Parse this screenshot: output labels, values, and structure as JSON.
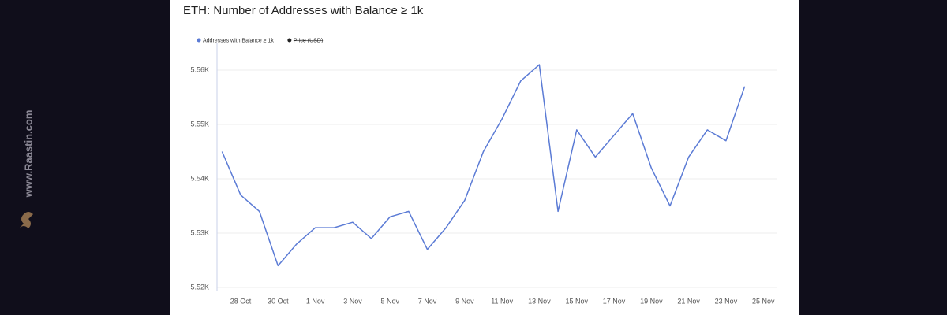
{
  "watermark": "www.Raastin.com",
  "chart_data": {
    "type": "line",
    "title": "ETH: Number of Addresses with Balance ≥ 1k",
    "categories": [
      null,
      "28 Oct",
      null,
      "30 Oct",
      null,
      "1 Nov",
      null,
      "3 Nov",
      null,
      "5 Nov",
      null,
      "7 Nov",
      null,
      "9 Nov",
      null,
      "11 Nov",
      null,
      "13 Nov",
      null,
      "15 Nov",
      null,
      "17 Nov",
      null,
      "19 Nov",
      null,
      "21 Nov",
      null,
      "23 Nov",
      null,
      "25 Nov"
    ],
    "series": [
      {
        "name": "Addresses with Balance ≥ 1k",
        "color": "#5b7bd5",
        "values": [
          5545,
          5537,
          5534,
          5524,
          5528,
          5531,
          5531,
          5532,
          5529,
          5533,
          5534,
          5527,
          5531,
          5536,
          5545,
          5551,
          5558,
          5561,
          5534,
          5549,
          5544,
          5548,
          5552,
          5542,
          5535,
          5544,
          5549,
          5547,
          5557,
          null
        ]
      },
      {
        "name": "Price (USD)",
        "color": "#222222",
        "hidden": true,
        "values": [
          null,
          null,
          null,
          null,
          null,
          null,
          null,
          null,
          null,
          null,
          null,
          null,
          null,
          null,
          null,
          null,
          null,
          null,
          null,
          null,
          null,
          null,
          null,
          null,
          null,
          null,
          null,
          null,
          null,
          null
        ]
      }
    ],
    "ylim": [
      5520,
      5565
    ],
    "yticks": [
      {
        "value": 5520,
        "label": "5.52K"
      },
      {
        "value": 5530,
        "label": "5.53K"
      },
      {
        "value": 5540,
        "label": "5.54K"
      },
      {
        "value": 5550,
        "label": "5.55K"
      },
      {
        "value": 5560,
        "label": "5.56K"
      }
    ],
    "grid": true,
    "legend": "top-left"
  }
}
